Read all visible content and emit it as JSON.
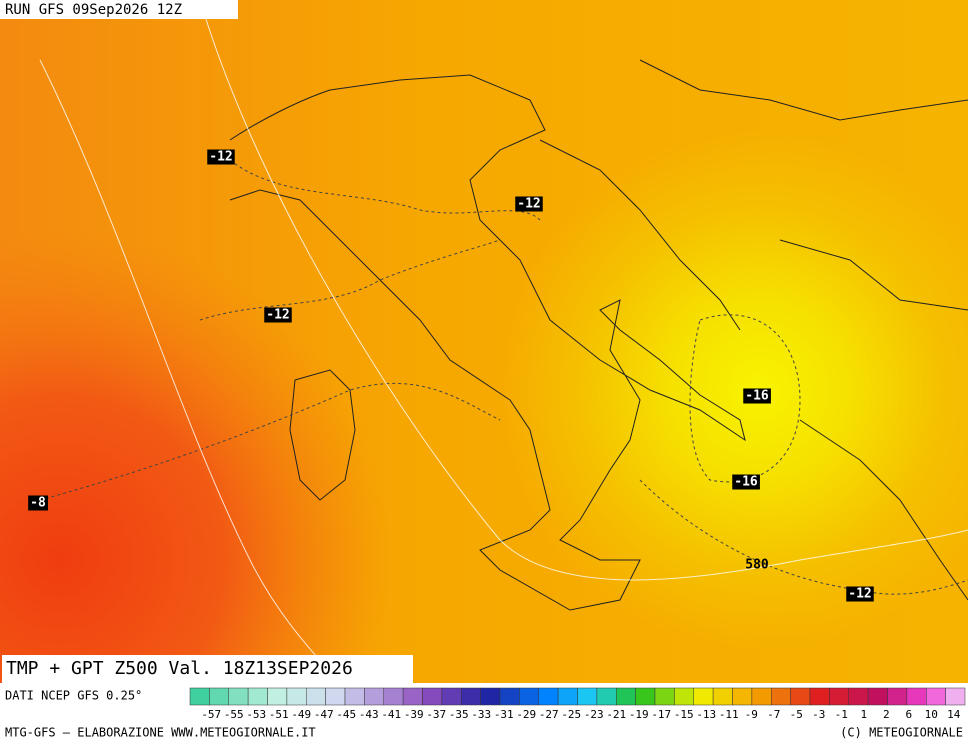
{
  "header": {
    "run": "RUN GFS 09Sep2026 12Z"
  },
  "contour_labels": [
    "-12",
    "-12",
    "-12",
    "-16",
    "-16",
    "-8",
    "580",
    "-12"
  ],
  "footer": {
    "title": "TMP + GPT Z500 Val. 18Z13SEP2026",
    "source": "DATI NCEP GFS 0.25°",
    "credit_left": "MTG-GFS – ELABORAZIONE WWW.METEOGIORNALE.IT",
    "credit_right": "(C) METEOGIORNALE"
  },
  "colorbar": {
    "labels": [
      "-57",
      "-55",
      "-53",
      "-51",
      "-49",
      "-47",
      "-45",
      "-43",
      "-41",
      "-39",
      "-37",
      "-35",
      "-33",
      "-31",
      "-29",
      "-27",
      "-25",
      "-23",
      "-21",
      "-19",
      "-17",
      "-15",
      "-13",
      "-11",
      "-9",
      "-7",
      "-5",
      "-3",
      "-1",
      "1",
      "2",
      "6",
      "10",
      "14"
    ]
  }
}
